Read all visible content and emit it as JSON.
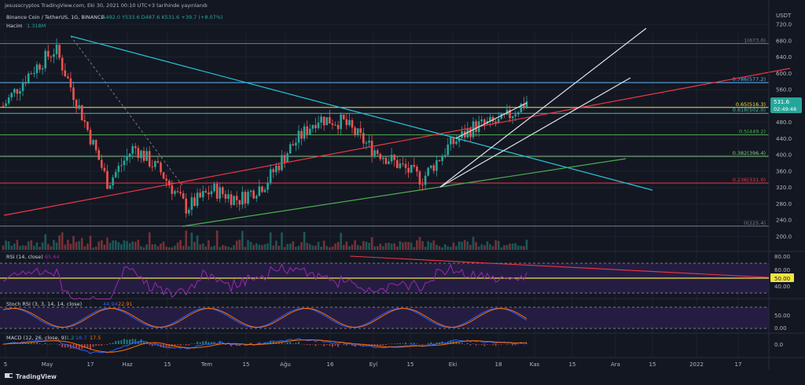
{
  "header": {
    "published": "jesusscryptos TradingView.com, Eki 30, 2021 00:10 UTC+3 tarihinde yayınlandı",
    "symbol": "Binance Coin / TetherUS, 1G, BINANCE",
    "ohlc": [
      {
        "k": "A",
        "v": "492.0"
      },
      {
        "k": "Y",
        "v": "533.6"
      },
      {
        "k": "D",
        "v": "487.6"
      },
      {
        "k": "K",
        "v": "531.6"
      }
    ],
    "change": "+39.7 (+8.07%)",
    "volume_label": "Hacim",
    "volume_value": "1.318M"
  },
  "price_axis": {
    "currency": "USDT",
    "ticks": [
      "720.0",
      "680.0",
      "640.0",
      "600.0",
      "560.0",
      "520.0",
      "480.0",
      "440.0",
      "400.0",
      "360.0",
      "320.0",
      "280.0",
      "240.0",
      "200.0"
    ],
    "last_price": "531.6",
    "countdown": "02:49:48"
  },
  "fib_levels": [
    {
      "label": "1(673.0)",
      "value": 673.0,
      "color": "#787b86"
    },
    {
      "label": "0.786(577.2)",
      "value": 577.2,
      "color": "#64b5f6"
    },
    {
      "label": "0.65(516.3)",
      "value": 516.3,
      "color": "#f0e442"
    },
    {
      "label": "0.618(502.0)",
      "value": 502.0,
      "color": "#4db6ac"
    },
    {
      "label": "0.5(449.2)",
      "value": 449.2,
      "color": "#4caf50"
    },
    {
      "label": "0.382(396.4)",
      "value": 396.4,
      "color": "#81c784"
    },
    {
      "label": "0.236(331.0)",
      "value": 331.0,
      "color": "#f23645"
    },
    {
      "label": "0(225.4)",
      "value": 225.4,
      "color": "#787b86"
    }
  ],
  "rsi": {
    "title": "RSI (14, close)",
    "value": "65.64",
    "ticks": [
      "80.00",
      "60.00",
      "40.00"
    ],
    "level_label": "50.00"
  },
  "stoch": {
    "title": "Stoch RSI (3, 3, 14, 14, close)",
    "k": "44.94",
    "d": "22.91",
    "ticks": [
      "50.00",
      "0.00"
    ]
  },
  "macd": {
    "title": "MACD (12, 26, close, 9)",
    "v1": "1.2",
    "v2": "18.7",
    "v3": "17.5",
    "ticks": [
      "0.0"
    ]
  },
  "time_axis": [
    "5",
    "May",
    "17",
    "Haz",
    "15",
    "Tem",
    "15",
    "Ağu",
    "16",
    "Eyl",
    "15",
    "Eki",
    "18",
    "Kas",
    "15",
    "Ara",
    "15",
    "2022",
    "17"
  ],
  "footer": {
    "brand": "TradingView"
  },
  "chart_data": {
    "type": "candlestick",
    "symbol": "BNB/USDT",
    "timeframe": "1D",
    "price_range": [
      190,
      730
    ],
    "last_close": 531.6,
    "series_close_approx": [
      {
        "date": "Apr 25",
        "close": 520
      },
      {
        "date": "May 1",
        "close": 600
      },
      {
        "date": "May 10",
        "close": 660
      },
      {
        "date": "May 17",
        "close": 500
      },
      {
        "date": "May 19",
        "close": 330
      },
      {
        "date": "Jun 1",
        "close": 420
      },
      {
        "date": "Jun 15",
        "close": 360
      },
      {
        "date": "Jun 22",
        "close": 270
      },
      {
        "date": "Jul 5",
        "close": 315
      },
      {
        "date": "Jul 20",
        "close": 290
      },
      {
        "date": "Aug 5",
        "close": 330
      },
      {
        "date": "Aug 20",
        "close": 420
      },
      {
        "date": "Aug 28",
        "close": 490
      },
      {
        "date": "Sep 6",
        "close": 480
      },
      {
        "date": "Sep 8",
        "close": 420
      },
      {
        "date": "Sep 20",
        "close": 380
      },
      {
        "date": "Sep 28",
        "close": 340
      },
      {
        "date": "Oct 5",
        "close": 420
      },
      {
        "date": "Oct 14",
        "close": 470
      },
      {
        "date": "Oct 25",
        "close": 480
      },
      {
        "date": "Oct 29",
        "close": 531.6
      }
    ]
  }
}
